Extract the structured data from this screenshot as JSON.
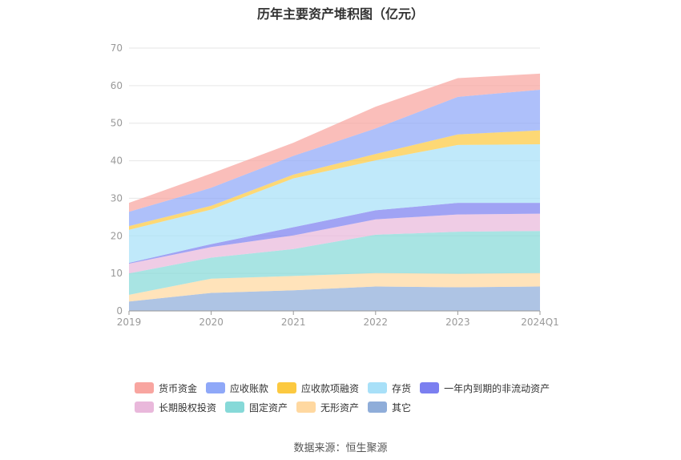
{
  "title": "历年主要资产堆积图（亿元）",
  "source": "数据来源：恒生聚源",
  "chart_data": {
    "type": "area",
    "stacked": true,
    "categories": [
      "2019",
      "2020",
      "2021",
      "2022",
      "2023",
      "2024Q1"
    ],
    "ylim": [
      0,
      70
    ],
    "yticks": [
      0,
      10,
      20,
      30,
      40,
      50,
      60,
      70
    ],
    "grid": true,
    "legend_position": "bottom",
    "series": [
      {
        "name": "其它",
        "color": "#8fadd9",
        "values": [
          2.5,
          4.8,
          5.5,
          6.5,
          6.3,
          6.5
        ]
      },
      {
        "name": "无形资产",
        "color": "#ffd8a0",
        "values": [
          1.8,
          3.8,
          3.8,
          3.6,
          3.6,
          3.6
        ]
      },
      {
        "name": "固定资产",
        "color": "#86d9d8",
        "values": [
          5.7,
          5.6,
          7.2,
          10.2,
          11.2,
          11.2
        ]
      },
      {
        "name": "长期股权投资",
        "color": "#e9b8db",
        "values": [
          2.6,
          2.8,
          3.6,
          4.1,
          4.6,
          4.6
        ]
      },
      {
        "name": "一年内到期的非流动资产",
        "color": "#7b7ff0",
        "values": [
          0.2,
          0.8,
          2.2,
          2.4,
          3.1,
          2.9
        ]
      },
      {
        "name": "存货",
        "color": "#a8e0f8",
        "values": [
          8.8,
          9.2,
          13.0,
          13.3,
          15.4,
          15.6
        ]
      },
      {
        "name": "应收款项融资",
        "color": "#fcc940",
        "values": [
          1.0,
          1.0,
          1.0,
          1.7,
          2.8,
          3.7
        ]
      },
      {
        "name": "应收账款",
        "color": "#8fa8f8",
        "values": [
          3.8,
          4.8,
          5.0,
          6.8,
          10.0,
          10.8
        ]
      },
      {
        "name": "货币资金",
        "color": "#f8a5a0",
        "values": [
          2.4,
          3.8,
          3.5,
          5.8,
          5.0,
          4.3
        ]
      }
    ],
    "legend_order": [
      "货币资金",
      "应收账款",
      "应收款项融资",
      "存货",
      "一年内到期的非流动资产",
      "长期股权投资",
      "固定资产",
      "无形资产",
      "其它"
    ]
  }
}
